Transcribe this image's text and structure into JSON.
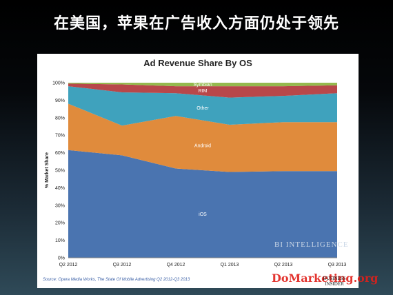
{
  "headline": "在美国，苹果在广告收入方面仍处于领先",
  "source": "Source: Opera Media Works, The State Of Mobile Advertising Q2 2012-Q3 2013",
  "watermark_bi": "BI INTELLIGENCE",
  "bi_logo": "BUSINESS\nINSIDER",
  "dom_watermark": "DoMarketing.org",
  "chart_data": {
    "type": "area",
    "title": "Ad Revenue Share By OS",
    "xlabel": "",
    "ylabel": "% Market Share",
    "categories": [
      "Q2 2012",
      "Q3 2012",
      "Q4 2012",
      "Q1 2013",
      "Q2 2013",
      "Q3 2013"
    ],
    "ylim": [
      0,
      100
    ],
    "yticks": [
      "0%",
      "10%",
      "20%",
      "30%",
      "40%",
      "50%",
      "60%",
      "70%",
      "80%",
      "90%",
      "100%"
    ],
    "stacked": true,
    "grid": false,
    "legend": "inline labels",
    "series": [
      {
        "name": "iOS",
        "color": "#4a74b0",
        "values": [
          61.5,
          58.5,
          51,
          49,
          49.5,
          49.5
        ]
      },
      {
        "name": "Android",
        "color": "#e08b3c",
        "values": [
          26.5,
          17,
          30,
          27,
          28,
          28
        ]
      },
      {
        "name": "Other",
        "color": "#3fa2bd",
        "values": [
          10,
          19,
          13,
          15.5,
          15,
          16.5
        ]
      },
      {
        "name": "RIM",
        "color": "#b8474a",
        "values": [
          1.5,
          4.5,
          4,
          6.5,
          5.5,
          4.5
        ]
      },
      {
        "name": "Symbian",
        "color": "#95b94e",
        "values": [
          0.5,
          1,
          2,
          2,
          2,
          1.5
        ]
      }
    ]
  }
}
